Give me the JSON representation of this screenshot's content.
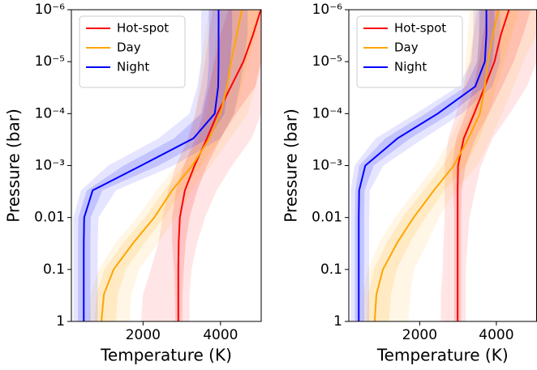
{
  "chart_data": [
    {
      "type": "line",
      "x_label": "Temperature (K)",
      "y_label": "Pressure (bar)",
      "xlim": [
        150,
        5050
      ],
      "xticks": [
        2000,
        4000
      ],
      "ylim": [
        1,
        1e-06
      ],
      "log_y": true,
      "invert_y": true,
      "yticks": [
        {
          "value": 1e-06,
          "label": "10⁻⁶"
        },
        {
          "value": 1e-05,
          "label": "10⁻⁵"
        },
        {
          "value": 0.0001,
          "label": "10⁻⁴"
        },
        {
          "value": 0.001,
          "label": "10⁻³"
        },
        0.01,
        0.1,
        1
      ],
      "legend": "upper left",
      "y": [
        1e-06,
        3e-06,
        1e-05,
        3e-05,
        0.0001,
        0.0003,
        0.001,
        0.003,
        0.01,
        0.03,
        0.1,
        0.3,
        1
      ],
      "series": [
        {
          "name": "Hot-spot",
          "color": "#ff0000",
          "values": [
            5040,
            4840,
            4590,
            4270,
            3920,
            3650,
            3330,
            3080,
            2950,
            2920,
            2910,
            2910,
            2910
          ],
          "lower1": [
            4200,
            4000,
            3850,
            3700,
            3550,
            3350,
            3050,
            2850,
            2750,
            2750,
            2800,
            2820,
            2830
          ],
          "upper1": [
            5050,
            5050,
            5050,
            4900,
            4400,
            4000,
            3650,
            3400,
            3200,
            3100,
            3050,
            3020,
            3010
          ],
          "lower2": [
            3800,
            3700,
            3600,
            3500,
            3350,
            3150,
            2850,
            2650,
            2500,
            2400,
            2200,
            2000,
            1950
          ],
          "upper2": [
            5050,
            5050,
            5050,
            5050,
            5050,
            4800,
            4300,
            3900,
            3600,
            3400,
            3250,
            3200,
            3200
          ]
        },
        {
          "name": "Day",
          "color": "#ffa500",
          "values": [
            4550,
            4420,
            4270,
            4170,
            4000,
            3710,
            3270,
            2750,
            2290,
            1760,
            1240,
            990,
            925
          ],
          "lower1": [
            4000,
            3900,
            3800,
            3750,
            3650,
            3450,
            3050,
            2550,
            2050,
            1500,
            1000,
            800,
            750
          ],
          "upper1": [
            5000,
            4900,
            4700,
            4550,
            4350,
            4000,
            3500,
            3000,
            2550,
            2050,
            1550,
            1350,
            1300
          ],
          "lower2": [
            3700,
            3600,
            3500,
            3450,
            3350,
            3200,
            2850,
            2350,
            1850,
            1300,
            850,
            650,
            600
          ],
          "upper2": [
            5050,
            5050,
            5050,
            4900,
            4700,
            4250,
            3750,
            3250,
            2850,
            2400,
            1900,
            1700,
            1650
          ]
        },
        {
          "name": "Night",
          "color": "#0000ff",
          "values": [
            3950,
            3950,
            3950,
            3940,
            3850,
            3300,
            1950,
            700,
            480,
            470,
            470,
            470,
            470
          ],
          "lower1": [
            3700,
            3700,
            3700,
            3650,
            3500,
            2800,
            1500,
            550,
            330,
            320,
            320,
            320,
            320
          ],
          "upper1": [
            4300,
            4300,
            4250,
            4200,
            4100,
            3700,
            2400,
            950,
            650,
            640,
            640,
            640,
            640
          ],
          "lower2": [
            3500,
            3500,
            3500,
            3400,
            3200,
            2400,
            1100,
            400,
            200,
            200,
            200,
            200,
            200
          ],
          "upper2": [
            4700,
            4700,
            4600,
            4500,
            4350,
            4000,
            2800,
            1300,
            850,
            830,
            830,
            830,
            830
          ]
        }
      ]
    },
    {
      "type": "line",
      "x_label": "Temperature (K)",
      "y_label": "Pressure (bar)",
      "xlim": [
        150,
        5050
      ],
      "xticks": [
        2000,
        4000
      ],
      "ylim": [
        1,
        1e-06
      ],
      "log_y": true,
      "invert_y": true,
      "yticks": [
        {
          "value": 1e-06,
          "label": "10⁻⁶"
        },
        {
          "value": 1e-05,
          "label": "10⁻⁵"
        },
        {
          "value": 0.0001,
          "label": "10⁻⁴"
        },
        {
          "value": 0.001,
          "label": "10⁻³"
        },
        0.01,
        0.1,
        1
      ],
      "legend": "upper left",
      "y": [
        1e-06,
        3e-06,
        1e-05,
        3e-05,
        0.0001,
        0.0003,
        0.001,
        0.003,
        0.01,
        0.03,
        0.1,
        0.3,
        1
      ],
      "series": [
        {
          "name": "Hot-spot",
          "color": "#ff0000",
          "values": [
            4330,
            4120,
            3950,
            3700,
            3420,
            3150,
            3000,
            2990,
            2990,
            2990,
            2990,
            2990,
            2990
          ],
          "lower1": [
            3800,
            3650,
            3550,
            3400,
            3200,
            2950,
            2850,
            2880,
            2900,
            2900,
            2900,
            2900,
            2900
          ],
          "upper1": [
            4900,
            4700,
            4450,
            4150,
            3800,
            3450,
            3200,
            3100,
            3080,
            3080,
            3080,
            3080,
            3080
          ],
          "lower2": [
            3500,
            3400,
            3300,
            3150,
            2950,
            2750,
            2650,
            2650,
            2650,
            2620,
            2600,
            2550,
            2550
          ],
          "upper2": [
            5050,
            5050,
            5050,
            4800,
            4350,
            3900,
            3600,
            3450,
            3300,
            3250,
            3200,
            3200,
            3200
          ]
        },
        {
          "name": "Day",
          "color": "#ffa500",
          "values": [
            4050,
            3910,
            3780,
            3700,
            3570,
            3270,
            2890,
            2370,
            1840,
            1420,
            1040,
            870,
            825
          ],
          "lower1": [
            3600,
            3550,
            3500,
            3450,
            3350,
            3000,
            2600,
            2100,
            1550,
            1150,
            800,
            650,
            620
          ],
          "upper1": [
            4600,
            4400,
            4200,
            4000,
            3800,
            3550,
            3200,
            2650,
            2150,
            1750,
            1400,
            1250,
            1200
          ],
          "lower2": [
            3300,
            3250,
            3200,
            3150,
            3100,
            2800,
            2400,
            1900,
            1350,
            950,
            650,
            520,
            500
          ],
          "upper2": [
            5050,
            5050,
            4700,
            4450,
            4150,
            3850,
            3500,
            2950,
            2500,
            2200,
            1850,
            1750,
            1700
          ]
        },
        {
          "name": "Night",
          "color": "#0000ff",
          "values": [
            3740,
            3740,
            3700,
            3450,
            2470,
            1420,
            580,
            420,
            410,
            410,
            410,
            410,
            410
          ],
          "lower1": [
            3550,
            3550,
            3500,
            3200,
            2150,
            1100,
            420,
            320,
            310,
            310,
            310,
            310,
            310
          ],
          "upper1": [
            3950,
            3950,
            3900,
            3700,
            2800,
            1750,
            800,
            560,
            550,
            550,
            550,
            550,
            550
          ],
          "lower2": [
            3400,
            3400,
            3350,
            3000,
            1900,
            850,
            300,
            200,
            200,
            200,
            200,
            200,
            200
          ],
          "upper2": [
            4100,
            4100,
            4100,
            3900,
            3100,
            2100,
            1050,
            700,
            680,
            680,
            680,
            680,
            680
          ]
        }
      ]
    }
  ]
}
